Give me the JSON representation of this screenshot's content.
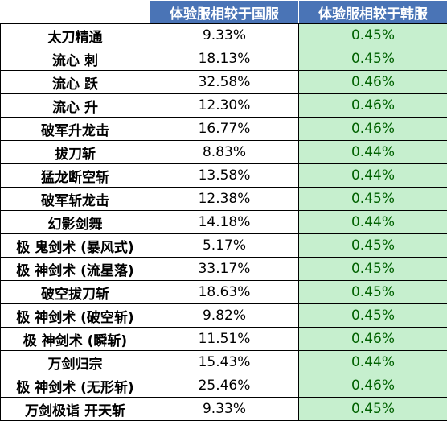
{
  "header": {
    "col_name": "",
    "col_cn": "体验服相较于国服",
    "col_kr": "体验服相较于韩服"
  },
  "rows": [
    {
      "name": "太刀精通",
      "cn": "9.33%",
      "kr": "0.45%"
    },
    {
      "name": "流心 刺",
      "cn": "18.13%",
      "kr": "0.45%"
    },
    {
      "name": "流心 跃",
      "cn": "32.58%",
      "kr": "0.46%"
    },
    {
      "name": "流心 升",
      "cn": "12.30%",
      "kr": "0.46%"
    },
    {
      "name": "破军升龙击",
      "cn": "16.77%",
      "kr": "0.46%"
    },
    {
      "name": "拔刀斩",
      "cn": "8.83%",
      "kr": "0.44%"
    },
    {
      "name": "猛龙断空斩",
      "cn": "13.58%",
      "kr": "0.44%"
    },
    {
      "name": "破军斩龙击",
      "cn": "12.38%",
      "kr": "0.45%"
    },
    {
      "name": "幻影剑舞",
      "cn": "14.18%",
      "kr": "0.44%"
    },
    {
      "name": "极 鬼剑术 (暴风式)",
      "cn": "5.17%",
      "kr": "0.45%"
    },
    {
      "name": "极 神剑术 (流星落)",
      "cn": "33.17%",
      "kr": "0.45%"
    },
    {
      "name": "破空拔刀斩",
      "cn": "18.63%",
      "kr": "0.45%"
    },
    {
      "name": "极 神剑术 (破空斩)",
      "cn": "9.82%",
      "kr": "0.45%"
    },
    {
      "name": "极 神剑术 (瞬斩)",
      "cn": "11.51%",
      "kr": "0.46%"
    },
    {
      "name": "万剑归宗",
      "cn": "15.43%",
      "kr": "0.44%"
    },
    {
      "name": "极 神剑术 (无形斩)",
      "cn": "25.46%",
      "kr": "0.46%"
    },
    {
      "name": "万剑极诣 开天斩",
      "cn": "9.33%",
      "kr": "0.45%"
    }
  ],
  "colors": {
    "header_bg": "#4a74b6",
    "header_text": "#ffffff",
    "highlight_bg": "#c6efce",
    "highlight_text": "#006100"
  }
}
